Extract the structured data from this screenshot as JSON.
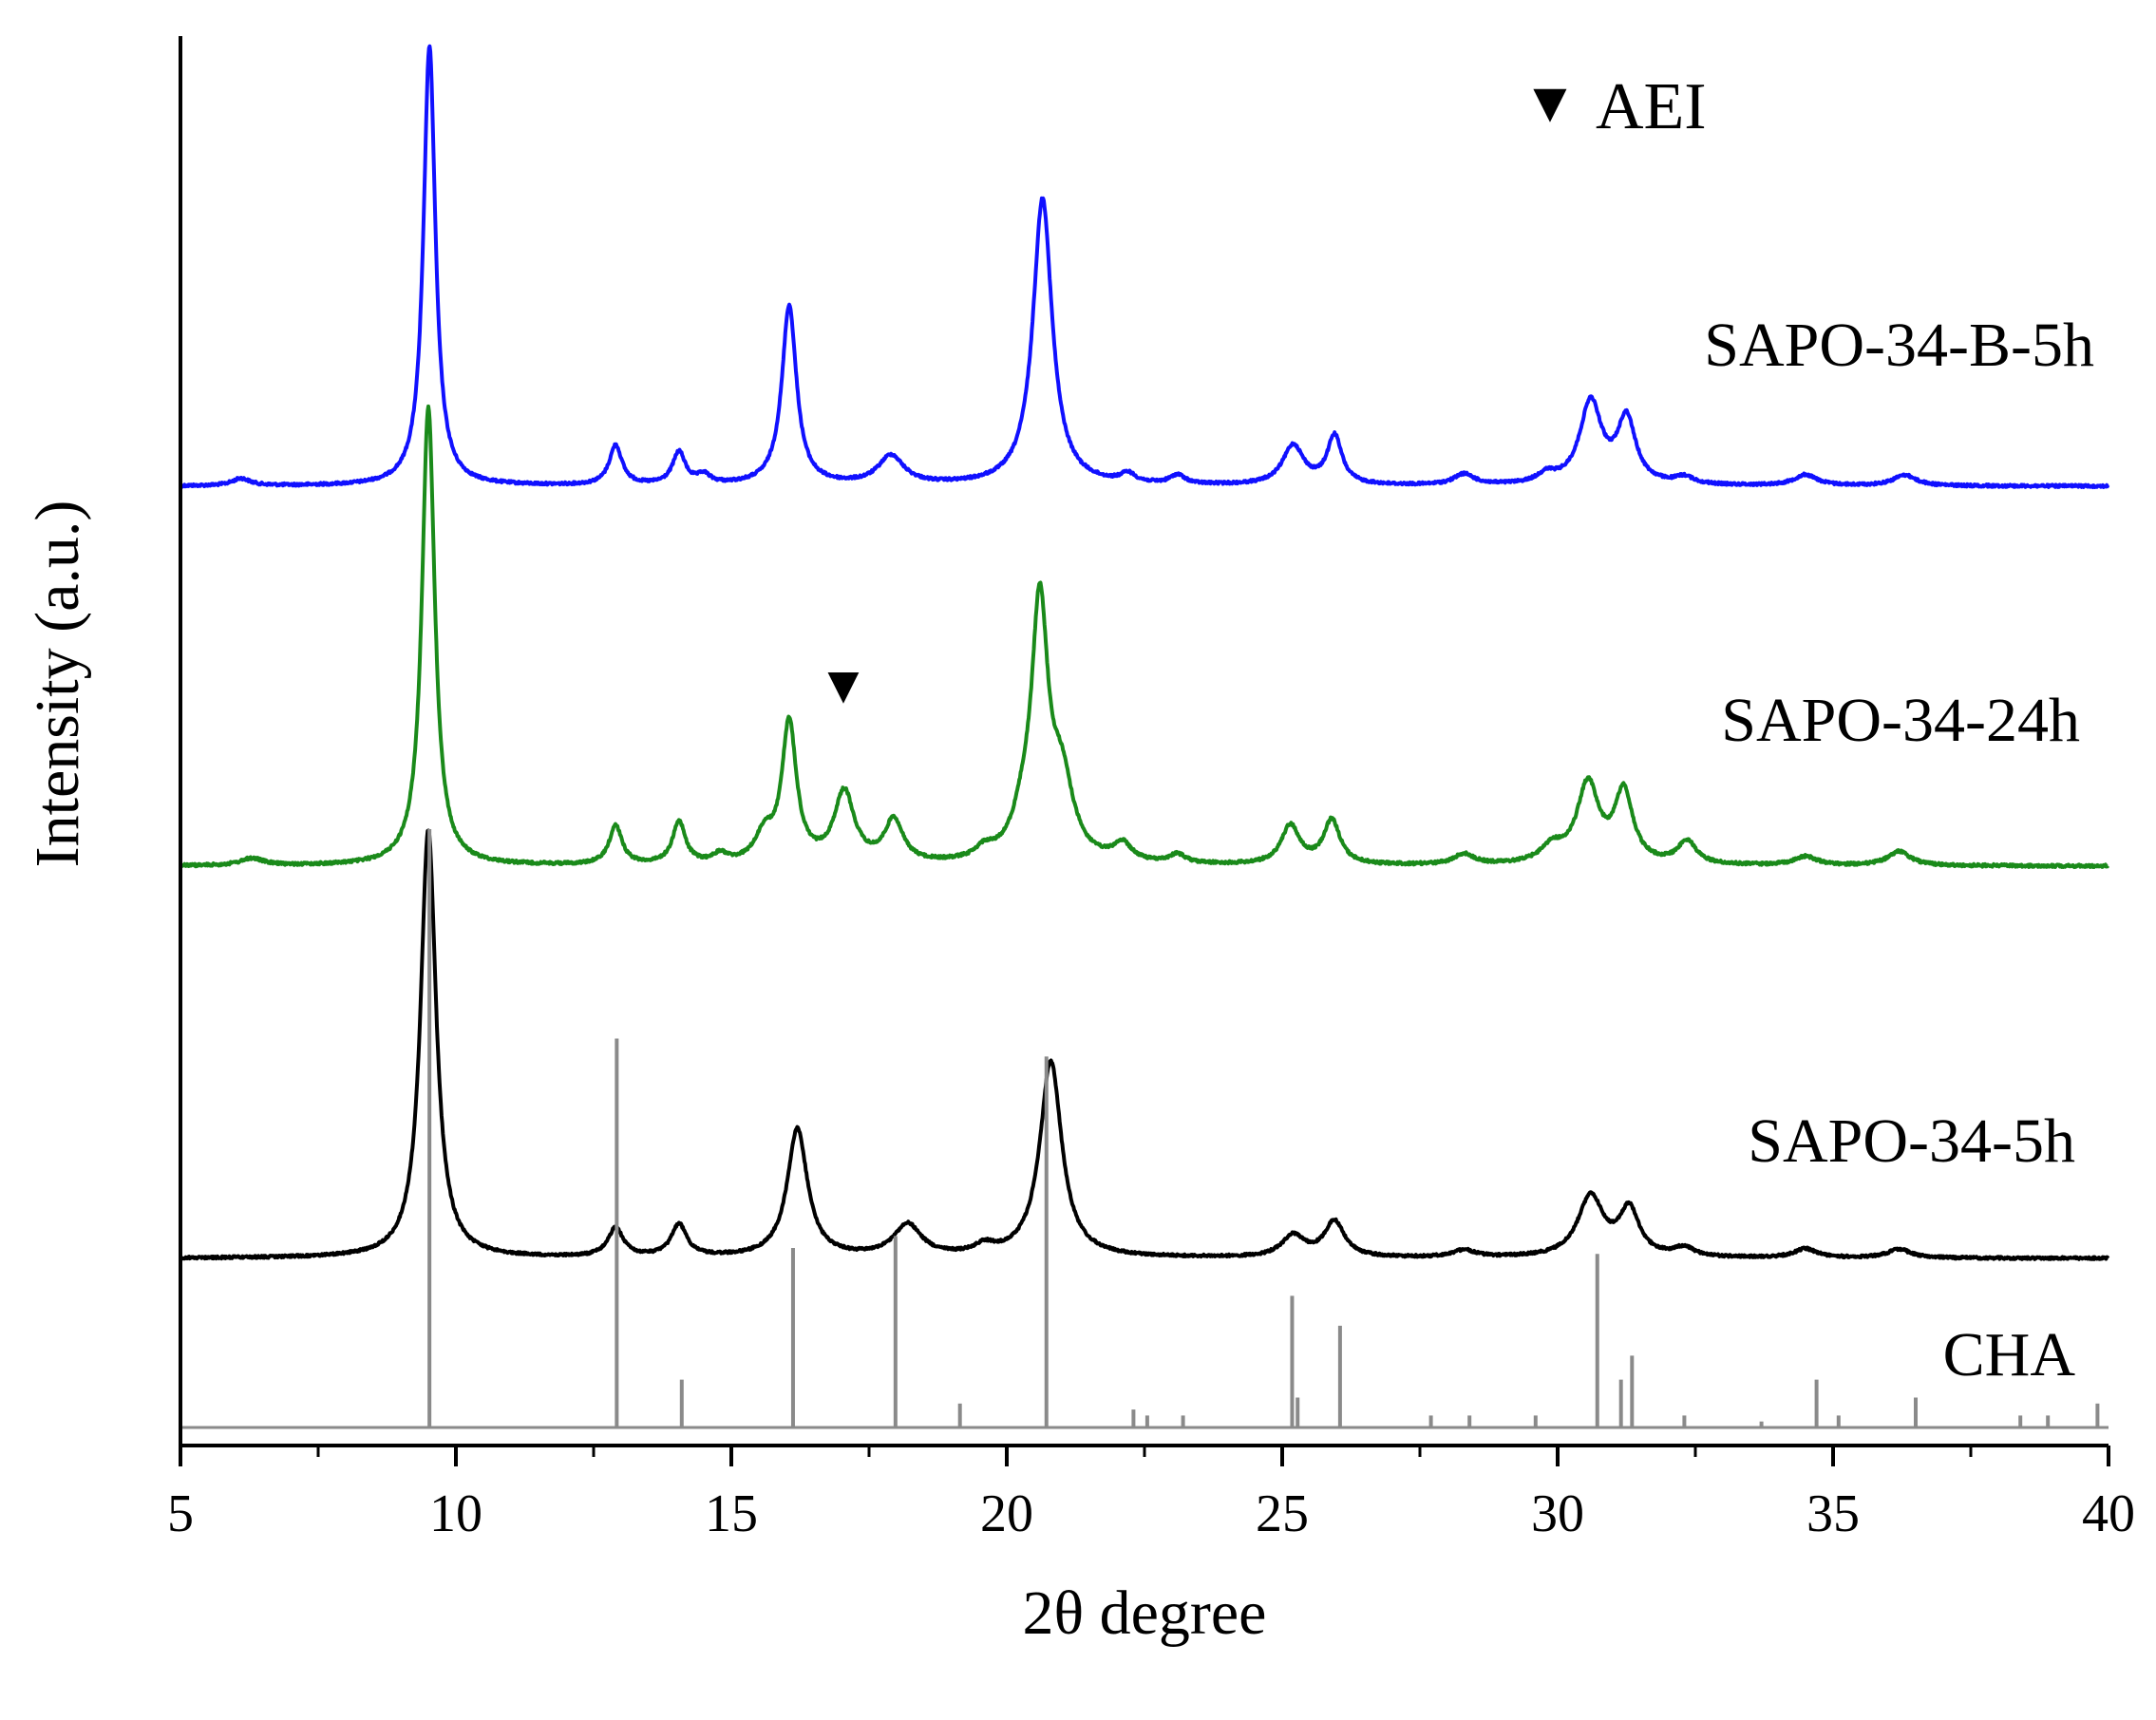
{
  "chart_data": {
    "type": "line",
    "xlabel": "2θ degree",
    "ylabel": "Intensity (a.u.)",
    "xlim": [
      5,
      40
    ],
    "xticks": [
      5,
      10,
      15,
      20,
      25,
      30,
      35,
      40
    ],
    "tick_labels": [
      "5",
      "10",
      "15",
      "20",
      "25",
      "30",
      "35",
      "40"
    ],
    "y_scale": "stacked, offset patterns (arbitrary units)",
    "legend": {
      "marker": "▼",
      "label": "AEI",
      "position": "top-right"
    },
    "annotations": [
      {
        "marker": "▼",
        "x": 17.1,
        "series": "SAPO-34-24h"
      }
    ],
    "series": [
      {
        "name": "SAPO-34-B-5h",
        "color": "#1010ff",
        "baseline": 0,
        "peaks": [
          {
            "x": 6.1,
            "h": 0.4,
            "w": 0.2
          },
          {
            "x": 9.52,
            "h": 24.5,
            "w": 0.13
          },
          {
            "x": 12.9,
            "h": 2.2,
            "w": 0.14
          },
          {
            "x": 14.05,
            "h": 1.8,
            "w": 0.14
          },
          {
            "x": 14.5,
            "h": 0.5,
            "w": 0.14
          },
          {
            "x": 16.05,
            "h": 10.0,
            "w": 0.16
          },
          {
            "x": 17.9,
            "h": 1.6,
            "w": 0.28
          },
          {
            "x": 20.65,
            "h": 16.0,
            "w": 0.21
          },
          {
            "x": 22.2,
            "h": 0.5,
            "w": 0.16
          },
          {
            "x": 23.1,
            "h": 0.5,
            "w": 0.16
          },
          {
            "x": 25.2,
            "h": 2.2,
            "w": 0.23
          },
          {
            "x": 25.95,
            "h": 2.7,
            "w": 0.16
          },
          {
            "x": 28.3,
            "h": 0.6,
            "w": 0.22
          },
          {
            "x": 29.8,
            "h": 0.5,
            "w": 0.2
          },
          {
            "x": 30.6,
            "h": 4.6,
            "w": 0.24
          },
          {
            "x": 31.25,
            "h": 3.6,
            "w": 0.2
          },
          {
            "x": 32.3,
            "h": 0.4,
            "w": 0.2
          },
          {
            "x": 34.5,
            "h": 0.6,
            "w": 0.25
          },
          {
            "x": 36.3,
            "h": 0.6,
            "w": 0.25
          }
        ]
      },
      {
        "name": "SAPO-34-24h",
        "color": "#1a8a1a",
        "baseline": 0,
        "peaks": [
          {
            "x": 6.3,
            "h": 0.4,
            "w": 0.25
          },
          {
            "x": 9.5,
            "h": 26.0,
            "w": 0.14
          },
          {
            "x": 12.9,
            "h": 2.2,
            "w": 0.14
          },
          {
            "x": 14.05,
            "h": 2.4,
            "w": 0.14
          },
          {
            "x": 14.8,
            "h": 0.5,
            "w": 0.15
          },
          {
            "x": 15.6,
            "h": 1.5,
            "w": 0.2
          },
          {
            "x": 16.05,
            "h": 7.9,
            "w": 0.16
          },
          {
            "x": 17.05,
            "h": 4.0,
            "w": 0.22
          },
          {
            "x": 17.95,
            "h": 2.4,
            "w": 0.2
          },
          {
            "x": 19.6,
            "h": 0.6,
            "w": 0.2
          },
          {
            "x": 20.3,
            "h": 1.8,
            "w": 0.25
          },
          {
            "x": 20.6,
            "h": 14.0,
            "w": 0.18
          },
          {
            "x": 21.0,
            "h": 4.2,
            "w": 0.25
          },
          {
            "x": 22.1,
            "h": 1.0,
            "w": 0.2
          },
          {
            "x": 23.1,
            "h": 0.5,
            "w": 0.18
          },
          {
            "x": 25.15,
            "h": 2.2,
            "w": 0.2
          },
          {
            "x": 25.9,
            "h": 2.5,
            "w": 0.18
          },
          {
            "x": 28.3,
            "h": 0.6,
            "w": 0.22
          },
          {
            "x": 29.9,
            "h": 0.9,
            "w": 0.25
          },
          {
            "x": 30.55,
            "h": 4.5,
            "w": 0.24
          },
          {
            "x": 31.2,
            "h": 4.0,
            "w": 0.2
          },
          {
            "x": 32.35,
            "h": 1.3,
            "w": 0.2
          },
          {
            "x": 34.5,
            "h": 0.5,
            "w": 0.25
          },
          {
            "x": 36.2,
            "h": 0.8,
            "w": 0.25
          }
        ]
      },
      {
        "name": "SAPO-34-5h",
        "color": "#000000",
        "baseline": 0,
        "peaks": [
          {
            "x": 9.5,
            "h": 24.0,
            "w": 0.17
          },
          {
            "x": 12.9,
            "h": 1.6,
            "w": 0.17
          },
          {
            "x": 14.05,
            "h": 1.8,
            "w": 0.17
          },
          {
            "x": 16.2,
            "h": 7.2,
            "w": 0.22
          },
          {
            "x": 18.2,
            "h": 1.8,
            "w": 0.3
          },
          {
            "x": 19.6,
            "h": 0.5,
            "w": 0.22
          },
          {
            "x": 20.8,
            "h": 11.0,
            "w": 0.24
          },
          {
            "x": 25.2,
            "h": 1.2,
            "w": 0.25
          },
          {
            "x": 25.95,
            "h": 2.0,
            "w": 0.22
          },
          {
            "x": 28.3,
            "h": 0.4,
            "w": 0.25
          },
          {
            "x": 30.6,
            "h": 3.4,
            "w": 0.28
          },
          {
            "x": 31.3,
            "h": 2.6,
            "w": 0.22
          },
          {
            "x": 32.3,
            "h": 0.5,
            "w": 0.22
          },
          {
            "x": 34.5,
            "h": 0.5,
            "w": 0.25
          },
          {
            "x": 36.2,
            "h": 0.5,
            "w": 0.25
          }
        ]
      },
      {
        "name": "CHA",
        "color": "#8a8a8a",
        "type": "sticks",
        "sticks": [
          {
            "x": 9.52,
            "h": 100
          },
          {
            "x": 12.92,
            "h": 65
          },
          {
            "x": 14.1,
            "h": 8
          },
          {
            "x": 16.12,
            "h": 30
          },
          {
            "x": 17.98,
            "h": 32
          },
          {
            "x": 19.15,
            "h": 4
          },
          {
            "x": 20.72,
            "h": 62
          },
          {
            "x": 22.3,
            "h": 3
          },
          {
            "x": 22.55,
            "h": 2
          },
          {
            "x": 23.2,
            "h": 2
          },
          {
            "x": 25.18,
            "h": 22
          },
          {
            "x": 25.28,
            "h": 5
          },
          {
            "x": 26.05,
            "h": 17
          },
          {
            "x": 27.7,
            "h": 2
          },
          {
            "x": 28.4,
            "h": 2
          },
          {
            "x": 29.6,
            "h": 2
          },
          {
            "x": 30.72,
            "h": 29
          },
          {
            "x": 31.15,
            "h": 8
          },
          {
            "x": 31.35,
            "h": 12
          },
          {
            "x": 32.3,
            "h": 2
          },
          {
            "x": 33.7,
            "h": 1
          },
          {
            "x": 34.7,
            "h": 8
          },
          {
            "x": 35.1,
            "h": 2
          },
          {
            "x": 36.5,
            "h": 5
          },
          {
            "x": 38.4,
            "h": 2
          },
          {
            "x": 38.9,
            "h": 2
          },
          {
            "x": 39.8,
            "h": 4
          }
        ]
      }
    ]
  }
}
